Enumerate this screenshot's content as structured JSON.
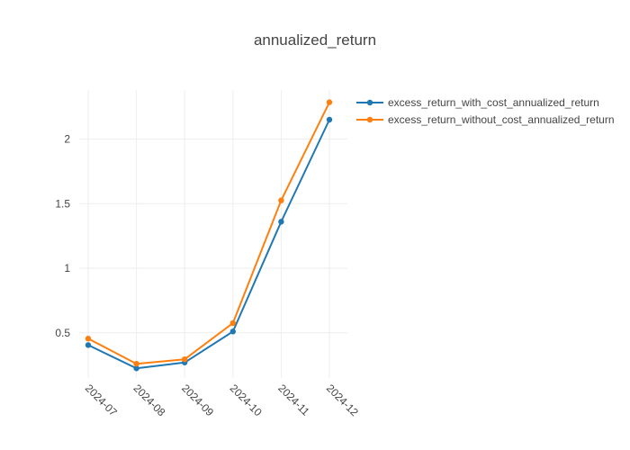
{
  "chart_data": {
    "type": "line",
    "title": "annualized_return",
    "xlabel": "",
    "ylabel": "",
    "categories": [
      "2024-07",
      "2024-08",
      "2024-09",
      "2024-10",
      "2024-11",
      "2024-12"
    ],
    "ylim": [
      0.15,
      2.38
    ],
    "yticks": [
      0.5,
      1,
      1.5,
      2
    ],
    "ytick_labels": [
      "0.5",
      "1",
      "1.5",
      "2"
    ],
    "grid": true,
    "legend_position": "top-right",
    "series": [
      {
        "name": "excess_return_with_cost_annualized_return",
        "color": "#1f77b4",
        "values": [
          0.405,
          0.225,
          0.27,
          0.51,
          1.36,
          2.15
        ]
      },
      {
        "name": "excess_return_without_cost_annualized_return",
        "color": "#ff7f0e",
        "values": [
          0.455,
          0.26,
          0.295,
          0.575,
          1.525,
          2.285
        ]
      }
    ]
  }
}
